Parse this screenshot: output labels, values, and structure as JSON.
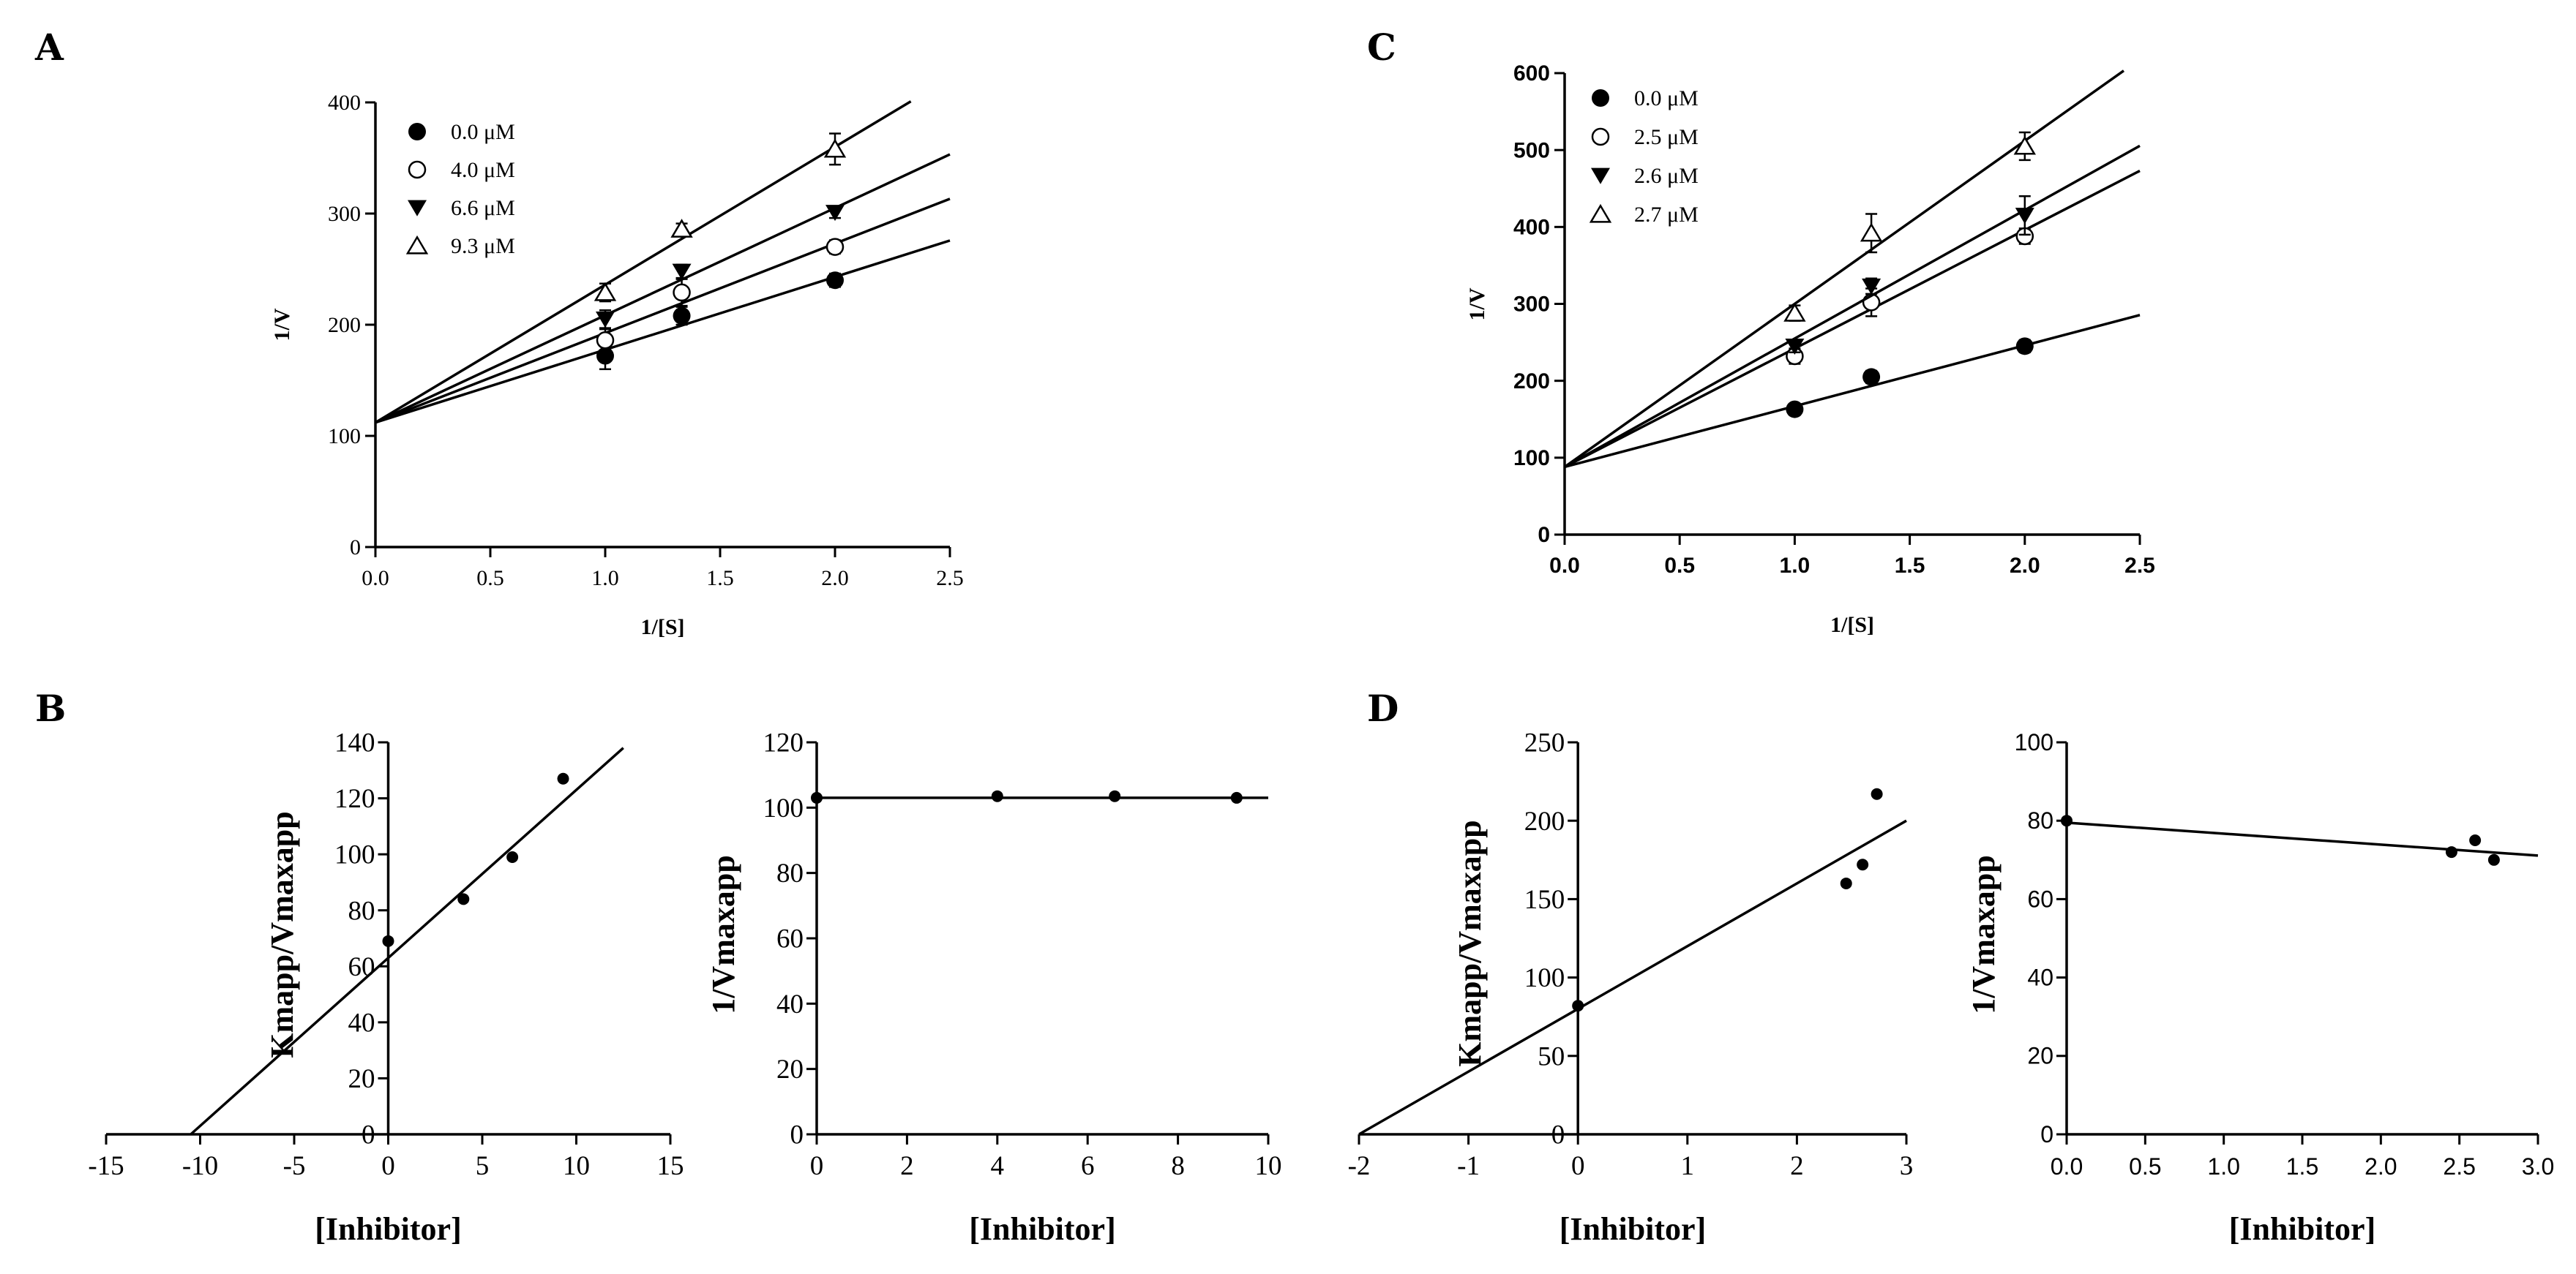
{
  "panel_labels": [
    "A",
    "B",
    "C",
    "D"
  ],
  "chart_data": [
    {
      "id": "A",
      "type": "scatter",
      "xlabel": "1/[S]",
      "ylabel": "1/V",
      "xlim": [
        0,
        2.5
      ],
      "ylim": [
        0,
        400
      ],
      "xticks": [
        0.0,
        0.5,
        1.0,
        1.5,
        2.0,
        2.5
      ],
      "xtick_labels": [
        "0.0",
        "0.5",
        "1.0",
        "1.5",
        "2.0",
        "2.5"
      ],
      "yticks": [
        0,
        100,
        200,
        300,
        400
      ],
      "ytick_labels": [
        "0",
        "100",
        "200",
        "300",
        "400"
      ],
      "legend_position": "top-left",
      "series": [
        {
          "name": "0.0 μM",
          "marker": "filled-circle",
          "x": [
            1.0,
            1.333,
            2.0
          ],
          "y": [
            172,
            208,
            240
          ],
          "err": [
            12,
            8,
            6
          ],
          "fit": {
            "intercept": 112,
            "slope": 65.5,
            "x_end": 2.5
          }
        },
        {
          "name": "4.0 μM",
          "marker": "open-circle",
          "x": [
            1.0,
            1.333,
            2.0
          ],
          "y": [
            186,
            229,
            270
          ],
          "err": [
            10,
            12,
            6
          ],
          "fit": {
            "intercept": 112,
            "slope": 80.5,
            "x_end": 2.5
          }
        },
        {
          "name": "6.6 μM",
          "marker": "filled-triangle-down",
          "x": [
            1.0,
            1.333,
            2.0
          ],
          "y": [
            205,
            248,
            301
          ],
          "err": [
            8,
            6,
            5
          ],
          "fit": {
            "intercept": 112,
            "slope": 96.5,
            "x_end": 2.5
          }
        },
        {
          "name": "9.3 μM",
          "marker": "open-triangle-up",
          "x": [
            1.0,
            1.333,
            2.0
          ],
          "y": [
            229,
            286,
            358
          ],
          "err": [
            8,
            5,
            14
          ],
          "fit": {
            "intercept": 112,
            "slope": 124,
            "x_end": 2.33
          }
        }
      ]
    },
    {
      "id": "B1",
      "type": "scatter",
      "xlabel": "[Inhibitor]",
      "ylabel": "Kmapp/Vmaxapp",
      "xlim": [
        -15,
        15
      ],
      "ylim": [
        0,
        140
      ],
      "xticks": [
        -15,
        -10,
        -5,
        0,
        5,
        10,
        15
      ],
      "xtick_labels": [
        "-15",
        "-10",
        "-5",
        "0",
        "5",
        "10",
        "15"
      ],
      "yticks": [
        0,
        20,
        40,
        60,
        80,
        100,
        120,
        140
      ],
      "ytick_labels": [
        "0",
        "20",
        "40",
        "60",
        "80",
        "100",
        "120",
        "140"
      ],
      "series": [
        {
          "name": "",
          "x": [
            0,
            4.0,
            6.6,
            9.3
          ],
          "y": [
            69,
            84,
            99,
            127
          ],
          "fit": {
            "intercept": 63,
            "slope": 6.0,
            "x_start": -10.5,
            "x_end": 12.5
          }
        }
      ]
    },
    {
      "id": "B2",
      "type": "scatter",
      "xlabel": "[Inhibitor]",
      "ylabel": "1/Vmaxapp",
      "xlim": [
        0,
        10
      ],
      "ylim": [
        0,
        120
      ],
      "xticks": [
        0,
        2,
        4,
        6,
        8,
        10
      ],
      "xtick_labels": [
        "0",
        "2",
        "4",
        "6",
        "8",
        "10"
      ],
      "yticks": [
        0,
        20,
        40,
        60,
        80,
        100,
        120
      ],
      "ytick_labels": [
        "0",
        "20",
        "40",
        "60",
        "80",
        "100",
        "120"
      ],
      "series": [
        {
          "name": "",
          "x": [
            0,
            4.0,
            6.6,
            9.3
          ],
          "y": [
            103,
            103.5,
            103.5,
            103
          ],
          "fit": {
            "intercept": 103,
            "slope": 0,
            "x_start": 0,
            "x_end": 10
          }
        }
      ]
    },
    {
      "id": "C",
      "type": "scatter",
      "xlabel": "1/[S]",
      "ylabel": "1/V",
      "xlim": [
        0,
        2.5
      ],
      "ylim": [
        0,
        600
      ],
      "xticks": [
        0.0,
        0.5,
        1.0,
        1.5,
        2.0,
        2.5
      ],
      "xtick_labels": [
        "0.0",
        "0.5",
        "1.0",
        "1.5",
        "2.0",
        "2.5"
      ],
      "yticks": [
        0,
        100,
        200,
        300,
        400,
        500,
        600
      ],
      "ytick_labels": [
        "0",
        "100",
        "200",
        "300",
        "400",
        "500",
        "600"
      ],
      "legend_position": "top-left",
      "series": [
        {
          "name": "0.0 μM",
          "marker": "filled-circle",
          "x": [
            1.0,
            1.333,
            2.0
          ],
          "y": [
            163,
            205,
            245
          ],
          "err": [
            6,
            8,
            8
          ],
          "fit": {
            "intercept": 88,
            "slope": 79,
            "x_end": 2.5
          }
        },
        {
          "name": "2.5 μM",
          "marker": "open-circle",
          "x": [
            1.0,
            1.333,
            2.0
          ],
          "y": [
            232,
            302,
            388
          ],
          "err": [
            10,
            18,
            10
          ],
          "fit": {
            "intercept": 88,
            "slope": 154,
            "x_end": 2.5
          }
        },
        {
          "name": "2.6 μM",
          "marker": "filled-triangle-down",
          "x": [
            1.0,
            1.333,
            2.0
          ],
          "y": [
            245,
            323,
            415
          ],
          "err": [
            8,
            10,
            25
          ],
          "fit": {
            "intercept": 88,
            "slope": 167,
            "x_end": 2.5
          }
        },
        {
          "name": "2.7 μM",
          "marker": "open-triangle-up",
          "x": [
            1.0,
            1.333,
            2.0
          ],
          "y": [
            288,
            392,
            505
          ],
          "err": [
            10,
            25,
            18
          ],
          "fit": {
            "intercept": 88,
            "slope": 212,
            "x_end": 2.43
          }
        }
      ]
    },
    {
      "id": "D1",
      "type": "scatter",
      "xlabel": "[Inhibitor]",
      "ylabel": "Kmapp/Vmaxapp",
      "xlim": [
        -2,
        3
      ],
      "ylim": [
        0,
        250
      ],
      "xticks": [
        -2,
        -1,
        0,
        1,
        2,
        3
      ],
      "xtick_labels": [
        "-2",
        "-1",
        "0",
        "1",
        "2",
        "3"
      ],
      "yticks": [
        0,
        50,
        100,
        150,
        200,
        250
      ],
      "ytick_labels": [
        "0",
        "50",
        "100",
        "150",
        "200",
        "250"
      ],
      "series": [
        {
          "name": "",
          "x": [
            0,
            2.45,
            2.6,
            2.73
          ],
          "y": [
            82,
            160,
            172,
            217
          ],
          "fit": {
            "intercept": 80,
            "slope": 40,
            "x_start": -2,
            "x_end": 3
          }
        }
      ]
    },
    {
      "id": "D2",
      "type": "scatter",
      "xlabel": "[Inhibitor]",
      "ylabel": "1/Vmaxapp",
      "xlim": [
        0,
        3.0
      ],
      "ylim": [
        0,
        100
      ],
      "xticks": [
        0.0,
        0.5,
        1.0,
        1.5,
        2.0,
        2.5,
        3.0
      ],
      "xtick_labels": [
        "0.0",
        "0.5",
        "1.0",
        "1.5",
        "2.0",
        "2.5",
        "3.0"
      ],
      "yticks": [
        0,
        20,
        40,
        60,
        80,
        100
      ],
      "ytick_labels": [
        "0",
        "20",
        "40",
        "60",
        "80",
        "100"
      ],
      "series": [
        {
          "name": "",
          "x": [
            0,
            2.45,
            2.6,
            2.72
          ],
          "y": [
            80,
            72,
            75,
            70
          ],
          "fit": {
            "intercept": 79.5,
            "slope": -2.8,
            "x_start": 0,
            "x_end": 3.0
          }
        }
      ]
    }
  ]
}
